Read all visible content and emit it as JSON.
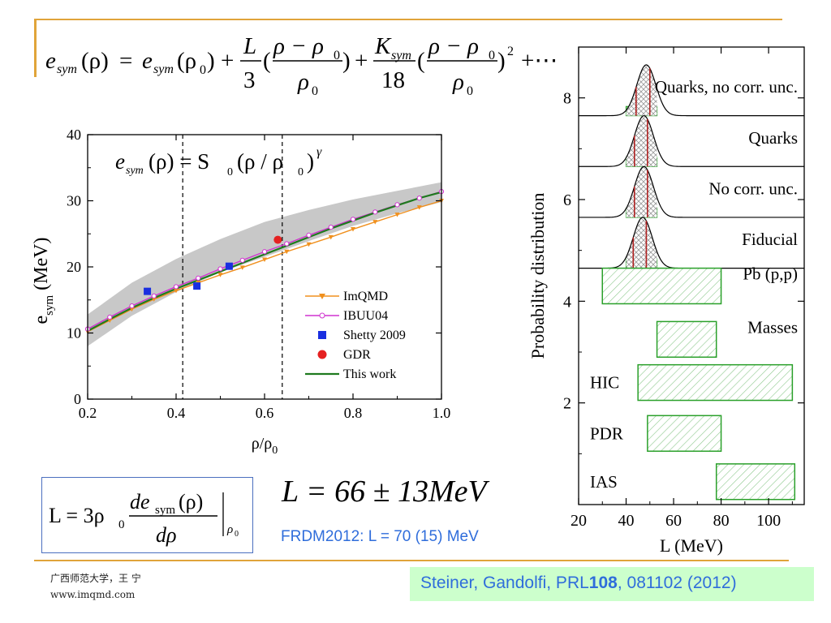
{
  "header_formula": {
    "lhs": "e",
    "lhs_sub": "sym",
    "arg": "(ρ)",
    "eq": "=",
    "term1": "e",
    "term1_sub": "sym",
    "term1_arg": "(ρ",
    "term1_arg_sub": "0",
    "term1_close": ")",
    "plus1": "+",
    "L_num": "L",
    "L_den": "3",
    "frac_open": "(",
    "frac_num": "ρ − ρ",
    "frac_num_sub": "0",
    "frac_den": "ρ",
    "frac_den_sub": "0",
    "frac_close": ")",
    "plus2": "+",
    "K_num": "K",
    "K_num_sub": "sym",
    "K_den": "18",
    "frac2_open": "(",
    "frac2_num": "ρ − ρ",
    "frac2_num_sub": "0",
    "frac2_den": "ρ",
    "frac2_den_sub": "0",
    "frac2_close": ")",
    "power": "2",
    "tail": "+⋯"
  },
  "inset_formula": {
    "lhs": "e",
    "lhs_sub": "sym",
    "arg": "(ρ) = S",
    "S_sub": "0",
    "mid": "(ρ / ρ",
    "rho_sub": "0",
    "close": ")",
    "exp": "γ"
  },
  "definition_formula": {
    "lhs": "L = 3ρ",
    "lhs_sub": "0",
    "num": "de",
    "num_sub": "sym",
    "num_arg": "(ρ)",
    "den": "dρ",
    "eval_sub": "ρ",
    "eval_sub_sub": "0"
  },
  "result_formula": {
    "text": "L = 66 ± 13",
    "unit": "MeV"
  },
  "frdm_note": "FRDM2012: L = 70 (15) MeV",
  "footer": {
    "line1": "广西师范大学，王 宁",
    "line2": "www.imqmd.com"
  },
  "citation": {
    "prefix": "Steiner, Gandolfi, PRL",
    "volume": "108",
    "suffix": ", 081102 (2012)"
  },
  "colors": {
    "accent_line": "#e0a43a",
    "blue_text": "#2f6ddb",
    "citation_bg": "#ccffcc",
    "imqmd": "#f0901e",
    "ibuu04": "#d033d0",
    "shetty": "#1a2fe0",
    "gdr": "#e52121",
    "this_work": "#1f7a1f",
    "band": "#c8c8c8",
    "hatch_green": "#2aa02a",
    "peak_red": "#b02020"
  },
  "chart_data": [
    {
      "type": "line",
      "xlabel": "ρ/ρ",
      "xlabel_sub": "0",
      "ylabel": "e",
      "ylabel_sub": "sym",
      "ylabel_unit": "(MeV)",
      "xlim": [
        0.2,
        1.0
      ],
      "ylim": [
        0,
        40
      ],
      "xticks": [
        "0.2",
        "0.4",
        "0.6",
        "0.8",
        "1.0"
      ],
      "yticks": [
        "0",
        "10",
        "20",
        "30",
        "40"
      ],
      "vlines": [
        0.415,
        0.64
      ],
      "grid": false,
      "legend_position": "bottom-right",
      "band": {
        "x": [
          0.2,
          0.3,
          0.4,
          0.5,
          0.6,
          0.7,
          0.8,
          0.9,
          1.0
        ],
        "lower": [
          8.0,
          12.6,
          16.2,
          19.2,
          21.5,
          23.9,
          26.2,
          28.1,
          29.8
        ],
        "upper": [
          12.8,
          17.6,
          21.2,
          24.2,
          26.8,
          28.6,
          30.2,
          31.5,
          32.8
        ]
      },
      "series": [
        {
          "name": "ImQMD",
          "marker": "down-triangle",
          "x": [
            0.2,
            0.25,
            0.3,
            0.35,
            0.4,
            0.45,
            0.5,
            0.55,
            0.6,
            0.65,
            0.7,
            0.75,
            0.8,
            0.85,
            0.9,
            0.95,
            1.0
          ],
          "y": [
            10.2,
            11.9,
            13.6,
            15.1,
            16.4,
            17.6,
            18.8,
            19.9,
            21.1,
            22.3,
            23.4,
            24.5,
            25.7,
            26.8,
            27.9,
            29.0,
            30.0
          ]
        },
        {
          "name": "IBUU04",
          "marker": "open-circle",
          "x": [
            0.2,
            0.25,
            0.3,
            0.35,
            0.4,
            0.45,
            0.5,
            0.55,
            0.6,
            0.65,
            0.7,
            0.75,
            0.8,
            0.85,
            0.9,
            0.95,
            1.0
          ],
          "y": [
            10.6,
            12.4,
            14.1,
            15.6,
            17.0,
            18.3,
            19.7,
            21.0,
            22.3,
            23.5,
            24.8,
            26.0,
            27.2,
            28.3,
            29.4,
            30.4,
            31.4
          ]
        },
        {
          "name": "Shetty 2009",
          "marker": "square",
          "x": [
            0.335,
            0.447,
            0.52
          ],
          "y": [
            16.3,
            17.1,
            20.1
          ]
        },
        {
          "name": "GDR",
          "marker": "circle",
          "x": [
            0.63
          ],
          "y": [
            24.1
          ]
        },
        {
          "name": "This work",
          "marker": "none",
          "x": [
            0.2,
            0.25,
            0.3,
            0.35,
            0.4,
            0.45,
            0.5,
            0.55,
            0.6,
            0.65,
            0.7,
            0.75,
            0.8,
            0.85,
            0.9,
            0.95,
            1.0
          ],
          "y": [
            10.3,
            12.1,
            13.8,
            15.3,
            16.7,
            18.0,
            19.3,
            20.6,
            21.9,
            23.2,
            24.5,
            25.8,
            27.0,
            28.2,
            29.3,
            30.4,
            31.3
          ]
        }
      ]
    },
    {
      "type": "range",
      "xlabel": "L (MeV)",
      "ylabel": "Probability distribution",
      "xlim": [
        20,
        115
      ],
      "ylim": [
        0,
        9
      ],
      "xticks": [
        "20",
        "40",
        "60",
        "80",
        "100"
      ],
      "yticks": [
        "2",
        "4",
        "6",
        "8"
      ],
      "grid": false,
      "distributions": [
        {
          "label": "Quarks, no corr. unc.",
          "baseline": 7.65,
          "peak": 48.5,
          "sigma": 4.0,
          "height": 1.0,
          "box": [
            40,
            53
          ],
          "cut": 44.2
        },
        {
          "label": "Quarks",
          "baseline": 6.65,
          "peak": 47.5,
          "sigma": 4.0,
          "height": 1.0,
          "box": [
            40,
            53
          ],
          "cut": 43.5
        },
        {
          "label": "No corr. unc.",
          "baseline": 5.65,
          "peak": 47.5,
          "sigma": 4.0,
          "height": 1.0,
          "box": [
            40,
            53
          ],
          "cut": 43.5
        },
        {
          "label": "Fiducial",
          "baseline": 4.65,
          "peak": 47.0,
          "sigma": 4.0,
          "height": 1.0,
          "box": [
            40,
            53
          ],
          "cut": 43.0
        }
      ],
      "ranges": [
        {
          "label": "Pb (p,p)",
          "lo": 30,
          "hi": 80,
          "y": [
            3.95,
            4.65
          ]
        },
        {
          "label": "Masses",
          "lo": 53,
          "hi": 78,
          "y": [
            2.9,
            3.6
          ]
        },
        {
          "label": "HIC",
          "lo": 45,
          "hi": 110,
          "y": [
            2.05,
            2.75
          ]
        },
        {
          "label": "PDR",
          "lo": 49,
          "hi": 80,
          "y": [
            1.05,
            1.75
          ]
        },
        {
          "label": "IAS",
          "lo": 78,
          "hi": 111,
          "y": [
            0.1,
            0.8
          ]
        }
      ]
    }
  ]
}
